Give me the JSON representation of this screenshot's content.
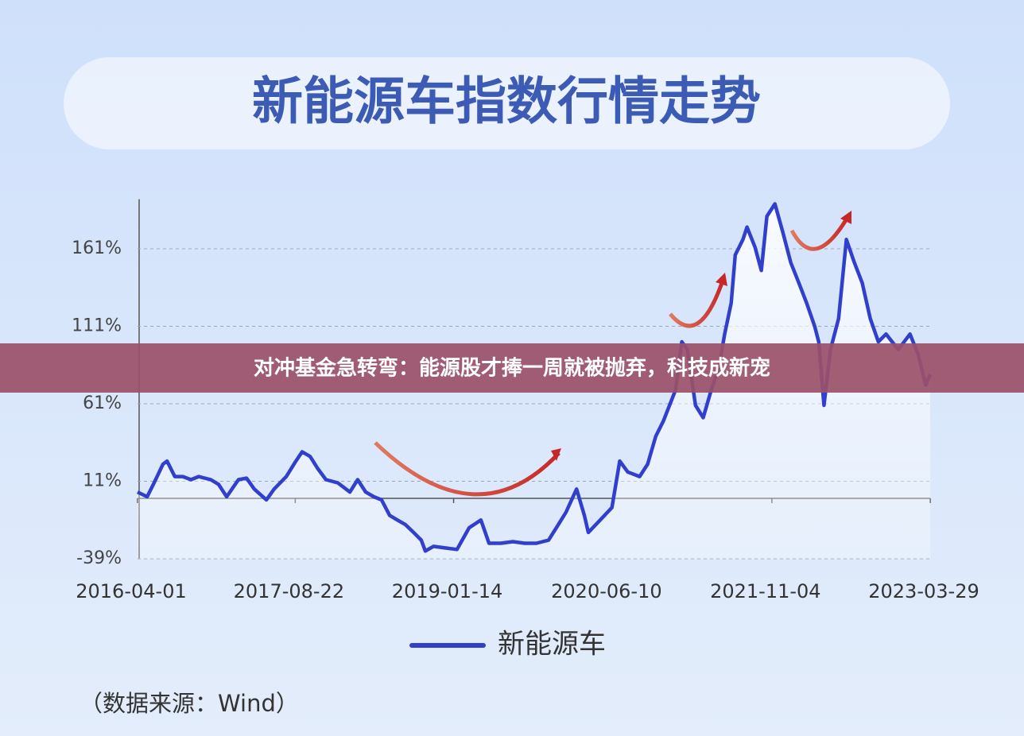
{
  "overlay_title": "对冲基金急转弯：能源股才捧一周就被抛弃，科技成新宠",
  "chart_data": {
    "type": "line",
    "title": "新能源车指数行情走势",
    "source": "（数据来源：Wind）",
    "x": [
      "2016-04-01",
      "2016-05-02",
      "2016-05-22",
      "2016-06-22",
      "2016-07-05",
      "2016-07-30",
      "2016-08-25",
      "2016-09-20",
      "2016-10-15",
      "2016-11-23",
      "2016-12-18",
      "2017-01-13",
      "2017-02-20",
      "2017-03-18",
      "2017-04-12",
      "2017-05-21",
      "2017-06-15",
      "2017-07-24",
      "2017-08-24",
      "2017-09-13",
      "2017-10-09",
      "2017-11-03",
      "2017-11-29",
      "2018-01-06",
      "2018-02-14",
      "2018-03-11",
      "2018-04-06",
      "2018-05-02",
      "2018-05-27",
      "2018-06-22",
      "2018-07-17",
      "2018-08-12",
      "2018-09-07",
      "2018-10-02",
      "2018-10-15",
      "2018-11-10",
      "2018-12-18",
      "2019-01-25",
      "2019-03-05",
      "2019-04-12",
      "2019-05-08",
      "2019-06-15",
      "2019-07-24",
      "2019-08-31",
      "2019-10-08",
      "2019-11-16",
      "2019-12-11",
      "2020-01-11",
      "2020-02-14",
      "2020-03-10",
      "2020-03-23",
      "2020-04-30",
      "2020-06-07",
      "2020-07-02",
      "2020-07-28",
      "2020-09-04",
      "2020-09-30",
      "2020-10-26",
      "2020-11-20",
      "2020-12-29",
      "2021-01-18",
      "2021-02-05",
      "2021-03-03",
      "2021-03-28",
      "2021-04-23",
      "2021-05-18",
      "2021-06-05",
      "2021-06-26",
      "2021-07-09",
      "2021-08-03",
      "2021-08-16",
      "2021-09-11",
      "2021-10-01",
      "2021-10-19",
      "2021-11-14",
      "2021-12-09",
      "2022-01-04",
      "2022-01-30",
      "2022-02-24",
      "2022-03-22",
      "2022-04-04",
      "2022-04-21",
      "2022-05-12",
      "2022-06-07",
      "2022-07-02",
      "2022-07-28",
      "2022-08-22",
      "2022-09-17",
      "2022-10-13",
      "2022-11-07",
      "2022-12-16",
      "2023-01-23",
      "2023-02-18",
      "2023-03-15",
      "2023-03-29"
    ],
    "series": [
      {
        "name": "新能源车",
        "color": "#3140cc",
        "values": [
          4,
          1,
          9,
          22,
          24,
          14,
          14,
          12,
          14,
          12,
          9,
          1,
          12,
          13,
          6,
          -1,
          6,
          14,
          24,
          30,
          27,
          19,
          12,
          10,
          4,
          12,
          4,
          1,
          -1,
          -11,
          -14,
          -17,
          -22,
          -27,
          -34,
          -31,
          -32,
          -33,
          -19,
          -14,
          -29,
          -29,
          -28,
          -29,
          -29,
          -27,
          -19,
          -9,
          6,
          -11,
          -22,
          -14,
          -6,
          24,
          17,
          14,
          22,
          40,
          50,
          70,
          101,
          96,
          60,
          52,
          70,
          85,
          106,
          126,
          157,
          167,
          175,
          162,
          147,
          182,
          190,
          172,
          152,
          139,
          126,
          111,
          101,
          60,
          96,
          116,
          167,
          152,
          139,
          116,
          101,
          106,
          96,
          106,
          93,
          73,
          80
        ]
      }
    ],
    "xlim": [
      "2016-04-01",
      "2023-03-29"
    ],
    "xticks": [
      "2016-04-01",
      "2017-08-22",
      "2019-01-14",
      "2020-06-10",
      "2021-11-04",
      "2023-03-29"
    ],
    "ylim": [
      -39,
      193
    ],
    "yticks": [
      {
        "value": -39,
        "label": "-39%"
      },
      {
        "value": 11,
        "label": "11%"
      },
      {
        "value": 61,
        "label": "61%"
      },
      {
        "value": 111,
        "label": "111%"
      },
      {
        "value": 161,
        "label": "161%"
      }
    ],
    "grid": true
  }
}
